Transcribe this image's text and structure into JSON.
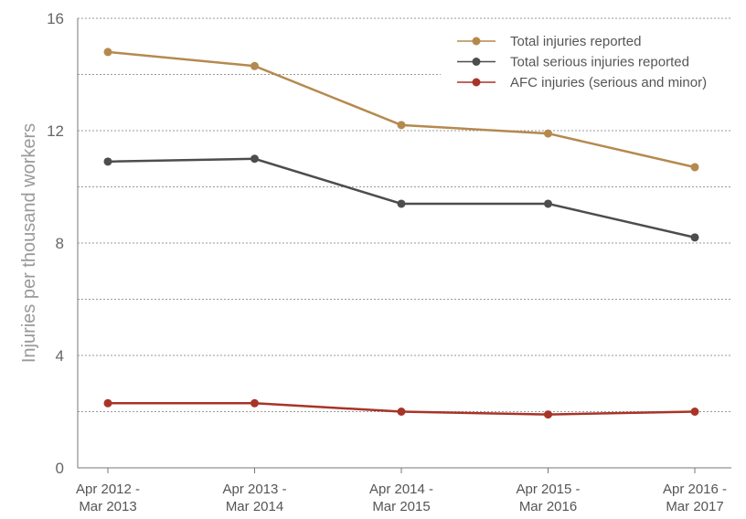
{
  "chart_data": {
    "type": "line",
    "y_label": "Injuries per thousand workers",
    "categories": [
      "Apr 2012 -\nMar 2013",
      "Apr 2013 -\nMar 2014",
      "Apr 2014 -\nMar 2015",
      "Apr 2015 -\nMar 2016",
      "Apr 2016 -\nMar 2017"
    ],
    "series": [
      {
        "name": "Total injuries reported",
        "color": "#b5894e",
        "values": [
          14.8,
          14.3,
          12.2,
          11.9,
          10.7
        ]
      },
      {
        "name": "Total serious injuries reported",
        "color": "#4d4d4d",
        "values": [
          10.9,
          11.0,
          9.4,
          9.4,
          8.2
        ]
      },
      {
        "name": "AFC injuries (serious and minor)",
        "color": "#a83428",
        "values": [
          2.3,
          2.3,
          2.0,
          1.9,
          2.0
        ]
      }
    ],
    "ylim": [
      0,
      16
    ],
    "yticks": [
      0,
      4,
      8,
      12,
      16
    ],
    "minor_yticks": [
      2,
      6,
      10,
      14
    ],
    "grid": true,
    "legend": "upper right"
  }
}
